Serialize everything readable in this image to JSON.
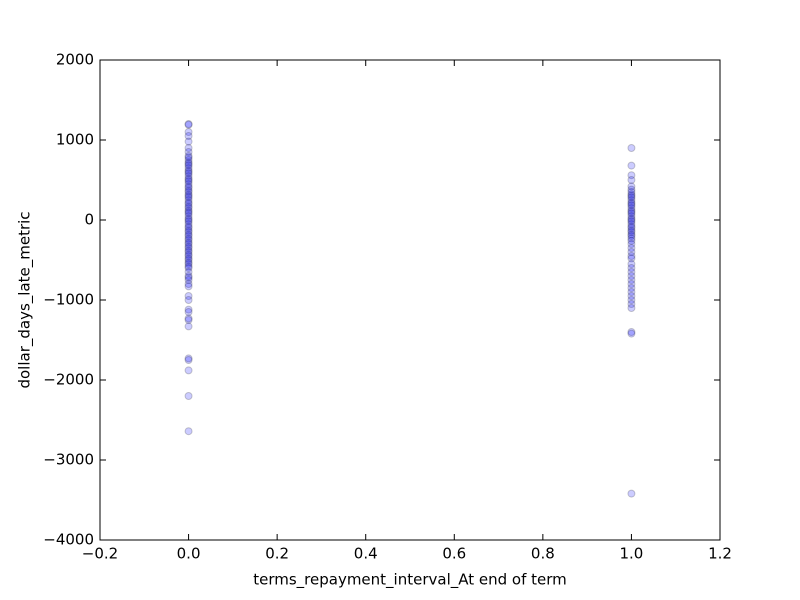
{
  "chart_data": {
    "type": "scatter",
    "x_label": "terms_repayment_interval_At end of term",
    "y_label": "dollar_days_late_metric",
    "color": "#0000ff",
    "edge_color": "#000000",
    "alpha": 0.2,
    "xlim": [
      -0.2,
      1.2
    ],
    "xticks": [
      {
        "value": -0.2,
        "label": "−0.2"
      },
      {
        "value": 0,
        "label": "0.0"
      },
      {
        "value": 0.2,
        "label": "0.2"
      },
      {
        "value": 0.4,
        "label": "0.4"
      },
      {
        "value": 0.6,
        "label": "0.6"
      },
      {
        "value": 0.8,
        "label": "0.8"
      },
      {
        "value": 1,
        "label": "1.0"
      },
      {
        "value": 1.2,
        "label": "1.2"
      }
    ],
    "ylim": [
      -4000,
      2000
    ],
    "yticks": [
      {
        "value": -4000,
        "label": "−4000"
      },
      {
        "value": -3000,
        "label": "−3000"
      },
      {
        "value": -2000,
        "label": "−2000"
      },
      {
        "value": -1000,
        "label": "−1000"
      },
      0,
      1000,
      2000
    ],
    "x": [
      0,
      0,
      0,
      0,
      0,
      0,
      0,
      0,
      0,
      0,
      0,
      0,
      0,
      0,
      0,
      0,
      0,
      0,
      0,
      0,
      0,
      0,
      0,
      0,
      0,
      0,
      0,
      0,
      0,
      0,
      0,
      0,
      0,
      0,
      0,
      0,
      0,
      0,
      0,
      0,
      0,
      0,
      0,
      0,
      0,
      0,
      0,
      0,
      0,
      0,
      0,
      0,
      0,
      0,
      0,
      0,
      0,
      0,
      0,
      0,
      0,
      0,
      0,
      0,
      0,
      0,
      0,
      0,
      0,
      0,
      0,
      0,
      0,
      0,
      0,
      0,
      0,
      0,
      0,
      0,
      0,
      0,
      1,
      1,
      1,
      1,
      1,
      1,
      1,
      1,
      1,
      1,
      1,
      1,
      1,
      1,
      1,
      1,
      1,
      1,
      1,
      1,
      1,
      1,
      1,
      1,
      1,
      1,
      1,
      1,
      1,
      1,
      1,
      1,
      1,
      1,
      1,
      1,
      1,
      1,
      1,
      1,
      1,
      1,
      1,
      1,
      1,
      1,
      1,
      1,
      1,
      1,
      1
    ],
    "values": [
      1200,
      1190,
      1100,
      1050,
      980,
      900,
      850,
      800,
      780,
      750,
      720,
      700,
      680,
      650,
      620,
      600,
      580,
      550,
      520,
      500,
      480,
      450,
      420,
      400,
      370,
      350,
      320,
      300,
      280,
      250,
      220,
      200,
      170,
      150,
      120,
      100,
      80,
      50,
      20,
      0,
      -20,
      -50,
      -80,
      -100,
      -130,
      -150,
      -180,
      -200,
      -230,
      -250,
      -280,
      -300,
      -330,
      -350,
      -380,
      -400,
      -430,
      -450,
      -480,
      -500,
      -530,
      -550,
      -580,
      -600,
      -650,
      -700,
      -720,
      -750,
      -800,
      -830,
      -950,
      -1000,
      -1120,
      -1150,
      -1230,
      -1250,
      -1330,
      -1730,
      -1750,
      -1880,
      -2200,
      -2640,
      900,
      680,
      560,
      500,
      420,
      380,
      350,
      320,
      300,
      280,
      250,
      220,
      200,
      180,
      150,
      120,
      100,
      80,
      50,
      20,
      0,
      -20,
      -50,
      -80,
      -100,
      -130,
      -150,
      -180,
      -200,
      -230,
      -260,
      -300,
      -350,
      -400,
      -450,
      -480,
      -550,
      -600,
      -650,
      -700,
      -750,
      -800,
      -850,
      -900,
      -950,
      -1000,
      -1050,
      -1100,
      -1400,
      -1420,
      -3420
    ]
  }
}
